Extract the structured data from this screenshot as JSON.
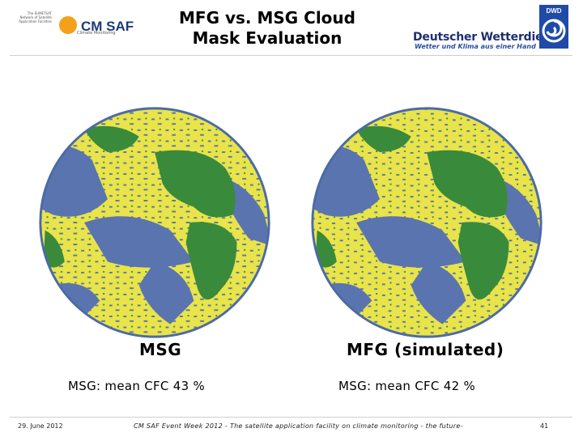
{
  "header": {
    "title": "MFG vs. MSG Cloud Mask Evaluation",
    "eumetsat_text": "The EUMETSAT Network of Satellite Application Facilities",
    "cmsaf_logo_text": "CM SAF",
    "cmsaf_subtitle": "Climate Monitoring",
    "dwd_name": "Deutscher Wetterdienst",
    "dwd_slogan": "Wetter und Klima aus einer Hand",
    "dwd_emblem_text": "DWD"
  },
  "panels": [
    {
      "title": "MSG",
      "mean_text": "MSG: mean CFC 43 %"
    },
    {
      "title": "MFG (simulated)",
      "mean_text": "MSG: mean CFC 42 %"
    }
  ],
  "map_colors": {
    "cloud": "#e8e44a",
    "land": "#3a8a3c",
    "ocean": "#5a74b0"
  },
  "footer": {
    "date": "29. June 2012",
    "event": "CM SAF Event Week 2012 - The satellite application facility on climate monitoring - the future-",
    "page": "41"
  }
}
